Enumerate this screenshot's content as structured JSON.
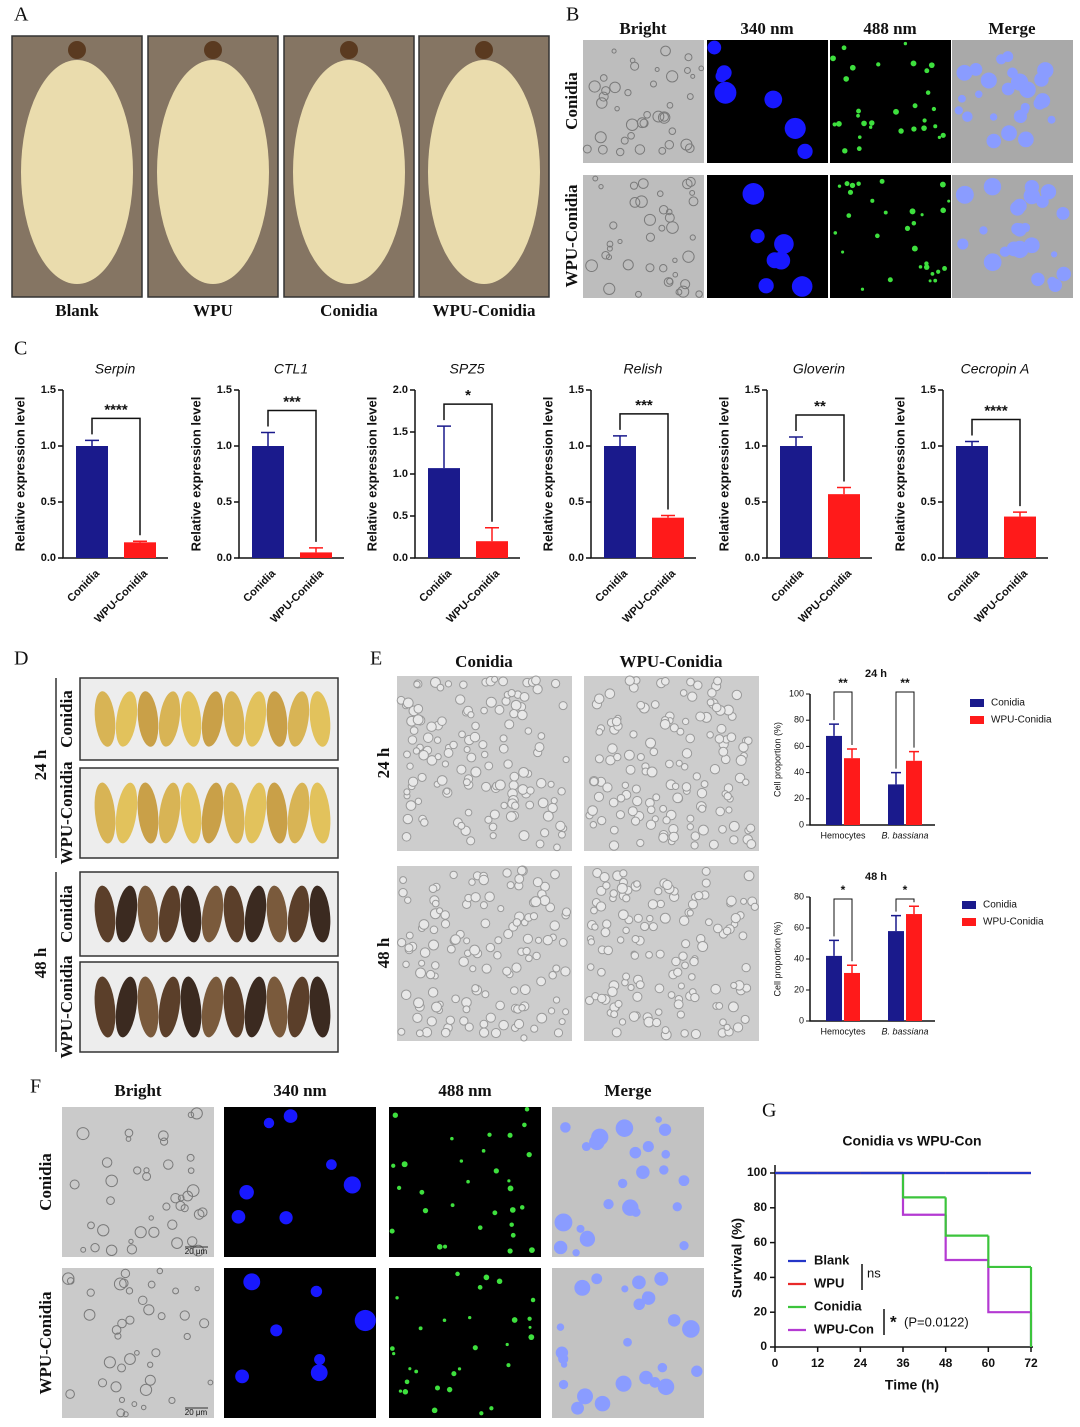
{
  "panel_labels": [
    "A",
    "B",
    "C",
    "D",
    "E",
    "F",
    "G"
  ],
  "panel_a": {
    "captions": [
      "Blank",
      "WPU",
      "Conidia",
      "WPU-Conidia"
    ]
  },
  "panel_b": {
    "columns": [
      "Bright",
      "340 nm",
      "488 nm",
      "Merge"
    ],
    "rows": [
      "Conidia",
      "WPU-Conidia"
    ]
  },
  "panel_d": {
    "groups": [
      {
        "label": "24 h",
        "rows": [
          "Conidia",
          "WPU-Conidia"
        ]
      },
      {
        "label": "48 h",
        "rows": [
          "Conidia",
          "WPU-Conidia"
        ]
      }
    ]
  },
  "panel_e": {
    "columns": [
      "Conidia",
      "WPU-Conidia"
    ],
    "rows": [
      "24 h",
      "48 h"
    ]
  },
  "panel_f": {
    "columns": [
      "Bright",
      "340 nm",
      "488 nm",
      "Merge"
    ],
    "rows": [
      "Conidia",
      "WPU-Conidia"
    ],
    "scale_bar": "20 μm"
  },
  "chart_data": [
    {
      "type": "bar",
      "title": "Serpin",
      "ylabel": "Relative expression level",
      "categories": [
        "Conidia",
        "WPU-Conidia"
      ],
      "values": [
        1.0,
        0.14
      ],
      "errors": [
        0.05,
        0.01
      ],
      "colors": [
        "#1a1a8c",
        "#ff1a1a"
      ],
      "ylim": [
        0,
        1.5
      ],
      "yticks": [
        {
          "value": 0,
          "label": "0.0"
        },
        {
          "value": 0.5,
          "label": "0.5"
        },
        {
          "value": 1,
          "label": "1.0"
        },
        {
          "value": 1.5,
          "label": "1.5"
        }
      ],
      "significance": "****"
    },
    {
      "type": "bar",
      "title": "CTL1",
      "ylabel": "Relative expression level",
      "categories": [
        "Conidia",
        "WPU-Conidia"
      ],
      "values": [
        1.0,
        0.05
      ],
      "errors": [
        0.12,
        0.04
      ],
      "colors": [
        "#1a1a8c",
        "#ff1a1a"
      ],
      "ylim": [
        0,
        1.5
      ],
      "yticks": [
        {
          "value": 0,
          "label": "0.0"
        },
        {
          "value": 0.5,
          "label": "0.5"
        },
        {
          "value": 1,
          "label": "1.0"
        },
        {
          "value": 1.5,
          "label": "1.5"
        }
      ],
      "significance": "***"
    },
    {
      "type": "bar",
      "title": "SPZ5",
      "ylabel": "Relative expression level",
      "categories": [
        "Conidia",
        "WPU-Conidia"
      ],
      "values": [
        1.07,
        0.2
      ],
      "errors": [
        0.5,
        0.16
      ],
      "colors": [
        "#1a1a8c",
        "#ff1a1a"
      ],
      "ylim": [
        0,
        2.0
      ],
      "yticks": [
        {
          "value": 0,
          "label": "0.0"
        },
        {
          "value": 0.5,
          "label": "0.5"
        },
        {
          "value": 1,
          "label": "1.0"
        },
        {
          "value": 1.5,
          "label": "1.5"
        },
        {
          "value": 2,
          "label": "2.0"
        }
      ],
      "significance": "*"
    },
    {
      "type": "bar",
      "title": "Relish",
      "ylabel": "Relative expression level",
      "categories": [
        "Conidia",
        "WPU-Conidia"
      ],
      "values": [
        1.0,
        0.36
      ],
      "errors": [
        0.09,
        0.02
      ],
      "colors": [
        "#1a1a8c",
        "#ff1a1a"
      ],
      "ylim": [
        0,
        1.5
      ],
      "yticks": [
        {
          "value": 0,
          "label": "0.0"
        },
        {
          "value": 0.5,
          "label": "0.5"
        },
        {
          "value": 1,
          "label": "1.0"
        },
        {
          "value": 1.5,
          "label": "1.5"
        }
      ],
      "significance": "***"
    },
    {
      "type": "bar",
      "title": "Gloverin",
      "ylabel": "Relative expression level",
      "categories": [
        "Conidia",
        "WPU-Conidia"
      ],
      "values": [
        1.0,
        0.57
      ],
      "errors": [
        0.08,
        0.06
      ],
      "colors": [
        "#1a1a8c",
        "#ff1a1a"
      ],
      "ylim": [
        0,
        1.5
      ],
      "yticks": [
        {
          "value": 0,
          "label": "0.0"
        },
        {
          "value": 0.5,
          "label": "0.5"
        },
        {
          "value": 1,
          "label": "1.0"
        },
        {
          "value": 1.5,
          "label": "1.5"
        }
      ],
      "significance": "**"
    },
    {
      "type": "bar",
      "title": "Cecropin A",
      "ylabel": "Relative expression level",
      "categories": [
        "Conidia",
        "WPU-Conidia"
      ],
      "values": [
        1.0,
        0.37
      ],
      "errors": [
        0.04,
        0.04
      ],
      "colors": [
        "#1a1a8c",
        "#ff1a1a"
      ],
      "ylim": [
        0,
        1.5
      ],
      "yticks": [
        {
          "value": 0,
          "label": "0.0"
        },
        {
          "value": 0.5,
          "label": "0.5"
        },
        {
          "value": 1,
          "label": "1.0"
        },
        {
          "value": 1.5,
          "label": "1.5"
        }
      ],
      "significance": "****"
    },
    {
      "type": "grouped_bar",
      "title": "24 h",
      "ylabel": "Cell proportion (%)",
      "categories": [
        "Hemocytes",
        "B. bassiana"
      ],
      "series": [
        {
          "name": "Conidia",
          "color": "#1a1a8c",
          "values": [
            68,
            31
          ],
          "errors": [
            9,
            9
          ]
        },
        {
          "name": "WPU-Conidia",
          "color": "#ff1a1a",
          "values": [
            51,
            49
          ],
          "errors": [
            7,
            7
          ]
        }
      ],
      "ylim": [
        0,
        100
      ],
      "yticks": [
        0,
        20,
        40,
        60,
        80,
        100
      ],
      "significance": [
        "**",
        "**"
      ]
    },
    {
      "type": "grouped_bar",
      "title": "48 h",
      "ylabel": "Cell proportion (%)",
      "categories": [
        "Hemocytes",
        "B. bassiana"
      ],
      "series": [
        {
          "name": "Conidia",
          "color": "#1a1a8c",
          "values": [
            42,
            58
          ],
          "errors": [
            10,
            10
          ]
        },
        {
          "name": "WPU-Conidia",
          "color": "#ff1a1a",
          "values": [
            31,
            69
          ],
          "errors": [
            5,
            5
          ]
        }
      ],
      "ylim": [
        0,
        80
      ],
      "yticks": [
        0,
        20,
        40,
        60,
        80
      ],
      "significance": [
        "*",
        "*"
      ]
    },
    {
      "type": "survival",
      "title": "Conidia vs WPU-Con",
      "xlabel": "Time (h)",
      "ylabel": "Survival (%)",
      "x": [
        0,
        12,
        24,
        36,
        48,
        60,
        72
      ],
      "xlim": [
        0,
        72
      ],
      "xticks": [
        0,
        12,
        24,
        36,
        48,
        60,
        72
      ],
      "ylim": [
        0,
        100
      ],
      "yticks": [
        0,
        20,
        40,
        60,
        80,
        100
      ],
      "series": [
        {
          "name": "Blank",
          "color": "#2436c8",
          "values": [
            100,
            100,
            100,
            100,
            100,
            100,
            100
          ]
        },
        {
          "name": "WPU",
          "color": "#e82a2a",
          "values": [
            100,
            100,
            100,
            100,
            100,
            100,
            100
          ]
        },
        {
          "name": "Conidia",
          "color": "#3cc43c",
          "values": [
            100,
            100,
            100,
            86,
            64,
            46,
            0
          ]
        },
        {
          "name": "WPU-Con",
          "color": "#b43ad2",
          "values": [
            100,
            100,
            100,
            76,
            50,
            20,
            0
          ]
        }
      ],
      "annotations": [
        "ns",
        "*",
        "(P=0.0122)"
      ]
    }
  ]
}
